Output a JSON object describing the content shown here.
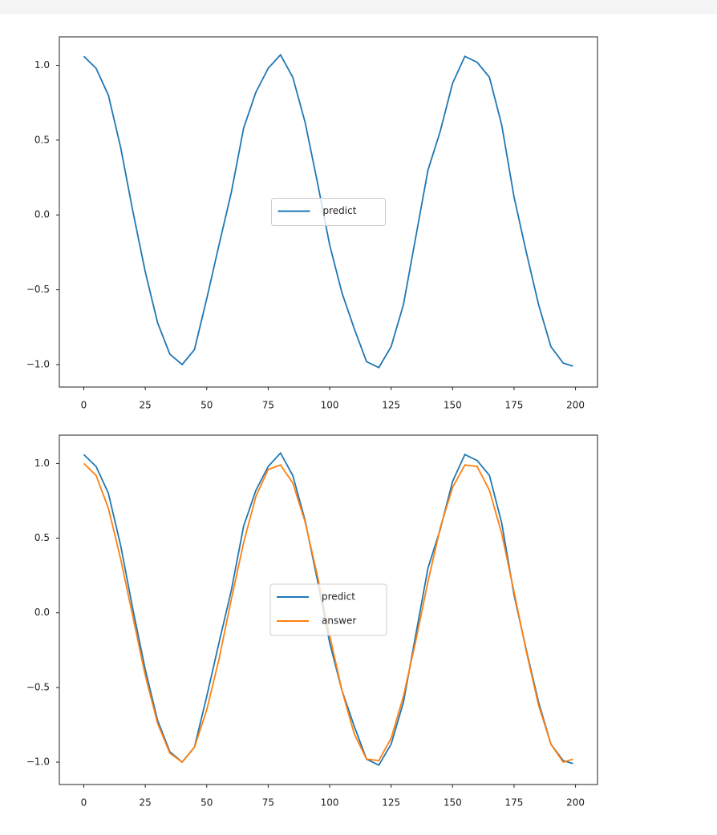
{
  "chart_data": [
    {
      "type": "line",
      "legend": "center",
      "grid": false,
      "x": [
        0,
        5,
        10,
        15,
        20,
        25,
        30,
        35,
        40,
        45,
        50,
        55,
        60,
        65,
        70,
        75,
        80,
        85,
        90,
        95,
        100,
        105,
        110,
        115,
        120,
        125,
        130,
        135,
        140,
        145,
        150,
        155,
        160,
        165,
        170,
        175,
        180,
        185,
        190,
        195,
        199
      ],
      "xlim": [
        -9.95,
        208.95
      ],
      "ylim": [
        -1.15,
        1.19
      ],
      "xticks": [
        0,
        25,
        50,
        75,
        100,
        125,
        150,
        175,
        200
      ],
      "yticks": [
        {
          "value": -1,
          "label": "−1.0"
        },
        {
          "value": -0.5,
          "label": "−0.5"
        },
        {
          "value": 0,
          "label": "0.0"
        },
        {
          "value": 0.5,
          "label": "0.5"
        },
        {
          "value": 1,
          "label": "1.0"
        }
      ],
      "series": [
        {
          "name": "predict",
          "color": "#1f77b4",
          "values": [
            1.06,
            0.98,
            0.8,
            0.45,
            0.02,
            -0.38,
            -0.72,
            -0.93,
            -1.0,
            -0.9,
            -0.56,
            -0.2,
            0.15,
            0.58,
            0.82,
            0.98,
            1.07,
            0.92,
            0.62,
            0.22,
            -0.2,
            -0.52,
            -0.76,
            -0.98,
            -1.02,
            -0.88,
            -0.6,
            -0.15,
            0.3,
            0.56,
            0.88,
            1.06,
            1.02,
            0.92,
            0.6,
            0.12,
            -0.25,
            -0.6,
            -0.88,
            -0.99,
            -1.01
          ]
        }
      ]
    },
    {
      "type": "line",
      "legend": "center",
      "grid": false,
      "x": [
        0,
        5,
        10,
        15,
        20,
        25,
        30,
        35,
        40,
        45,
        50,
        55,
        60,
        65,
        70,
        75,
        80,
        85,
        90,
        95,
        100,
        105,
        110,
        115,
        120,
        125,
        130,
        135,
        140,
        145,
        150,
        155,
        160,
        165,
        170,
        175,
        180,
        185,
        190,
        195,
        199
      ],
      "xlim": [
        -9.95,
        208.95
      ],
      "ylim": [
        -1.15,
        1.19
      ],
      "xticks": [
        0,
        25,
        50,
        75,
        100,
        125,
        150,
        175,
        200
      ],
      "yticks": [
        {
          "value": -1,
          "label": "−1.0"
        },
        {
          "value": -0.5,
          "label": "−0.5"
        },
        {
          "value": 0,
          "label": "0.0"
        },
        {
          "value": 0.5,
          "label": "0.5"
        },
        {
          "value": 1,
          "label": "1.0"
        }
      ],
      "series": [
        {
          "name": "predict",
          "color": "#1f77b4",
          "values": [
            1.06,
            0.98,
            0.8,
            0.45,
            0.02,
            -0.38,
            -0.72,
            -0.93,
            -1.0,
            -0.9,
            -0.56,
            -0.2,
            0.15,
            0.58,
            0.82,
            0.98,
            1.07,
            0.92,
            0.62,
            0.22,
            -0.2,
            -0.52,
            -0.76,
            -0.98,
            -1.02,
            -0.88,
            -0.6,
            -0.15,
            0.3,
            0.56,
            0.88,
            1.06,
            1.02,
            0.92,
            0.6,
            0.12,
            -0.25,
            -0.6,
            -0.88,
            -0.99,
            -1.01
          ]
        },
        {
          "name": "answer",
          "color": "#ff7f0e",
          "values": [
            1.0,
            0.92,
            0.7,
            0.36,
            -0.03,
            -0.42,
            -0.74,
            -0.94,
            -1.0,
            -0.9,
            -0.65,
            -0.31,
            0.09,
            0.47,
            0.78,
            0.96,
            0.99,
            0.87,
            0.61,
            0.25,
            -0.15,
            -0.52,
            -0.81,
            -0.98,
            -0.99,
            -0.84,
            -0.56,
            -0.19,
            0.21,
            0.57,
            0.84,
            0.99,
            0.98,
            0.82,
            0.53,
            0.14,
            -0.26,
            -0.62,
            -0.88,
            -1.0,
            -0.98
          ]
        }
      ]
    }
  ]
}
